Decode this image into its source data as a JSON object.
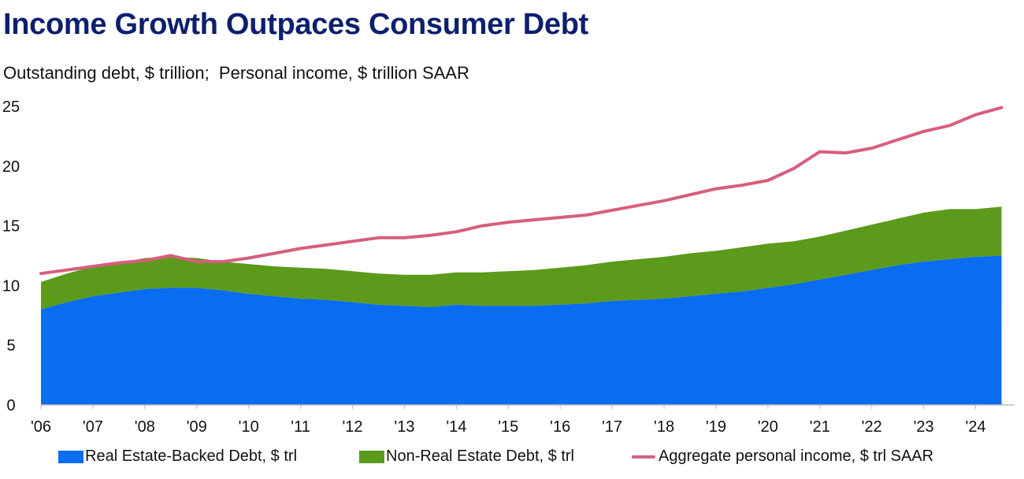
{
  "chart_data": {
    "type": "area",
    "title": "Income Growth Outpaces Consumer Debt",
    "subtitle": "Outstanding debt, $ trillion;  Personal income, $ trillion SAAR",
    "xlabel": "",
    "ylabel": "",
    "ylim": [
      0,
      25
    ],
    "yticks": [
      "0",
      "5",
      "10",
      "15",
      "20",
      "25"
    ],
    "xtick_labels": [
      "'06",
      "'07",
      "'08",
      "'09",
      "'10",
      "'11",
      "'12",
      "'13",
      "'14",
      "'15",
      "'16",
      "'17",
      "'18",
      "'19",
      "'20",
      "'21",
      "'22",
      "'23",
      "'24"
    ],
    "x": [
      2006.0,
      2006.5,
      2007.0,
      2007.5,
      2008.0,
      2008.5,
      2009.0,
      2009.5,
      2010.0,
      2010.5,
      2011.0,
      2011.5,
      2012.0,
      2012.5,
      2013.0,
      2013.5,
      2014.0,
      2014.5,
      2015.0,
      2015.5,
      2016.0,
      2016.5,
      2017.0,
      2017.5,
      2018.0,
      2018.5,
      2019.0,
      2019.5,
      2020.0,
      2020.5,
      2021.0,
      2021.5,
      2022.0,
      2022.5,
      2023.0,
      2023.5,
      2024.0,
      2024.5
    ],
    "series": [
      {
        "name": "Real Estate-Backed Debt, $ trl",
        "kind": "stacked-area",
        "color": "#0a6cf0",
        "values": [
          8.0,
          8.6,
          9.1,
          9.4,
          9.7,
          9.8,
          9.8,
          9.6,
          9.3,
          9.1,
          8.9,
          8.8,
          8.6,
          8.4,
          8.3,
          8.2,
          8.4,
          8.3,
          8.3,
          8.3,
          8.4,
          8.5,
          8.7,
          8.8,
          8.9,
          9.1,
          9.3,
          9.5,
          9.8,
          10.1,
          10.5,
          10.9,
          11.3,
          11.7,
          12.0,
          12.2,
          12.4,
          12.5
        ]
      },
      {
        "name": "Non-Real Estate Debt, $ trl",
        "kind": "stacked-area",
        "color": "#5c9a1c",
        "values": [
          2.3,
          2.4,
          2.5,
          2.5,
          2.6,
          2.6,
          2.5,
          2.4,
          2.5,
          2.5,
          2.6,
          2.6,
          2.6,
          2.6,
          2.6,
          2.7,
          2.7,
          2.8,
          2.9,
          3.0,
          3.1,
          3.2,
          3.3,
          3.4,
          3.5,
          3.6,
          3.6,
          3.7,
          3.7,
          3.6,
          3.6,
          3.7,
          3.8,
          3.9,
          4.1,
          4.2,
          4.0,
          4.1
        ]
      },
      {
        "name": "Aggregate personal income, $ trl SAAR",
        "kind": "line",
        "color": "#d65f7e",
        "values": [
          11.0,
          11.3,
          11.6,
          11.9,
          12.1,
          12.5,
          12.0,
          12.0,
          12.3,
          12.7,
          13.1,
          13.4,
          13.7,
          14.0,
          14.0,
          14.2,
          14.5,
          15.0,
          15.3,
          15.5,
          15.7,
          15.9,
          16.3,
          16.7,
          17.1,
          17.6,
          18.1,
          18.4,
          18.8,
          19.8,
          21.2,
          21.1,
          21.5,
          22.2,
          22.9,
          23.4,
          24.3,
          24.9
        ]
      }
    ],
    "legend_position": "bottom"
  },
  "colors": {
    "title": "#0d1f6e",
    "text": "#111111",
    "axis": "#bbbbbb",
    "background": "#ffffff"
  }
}
